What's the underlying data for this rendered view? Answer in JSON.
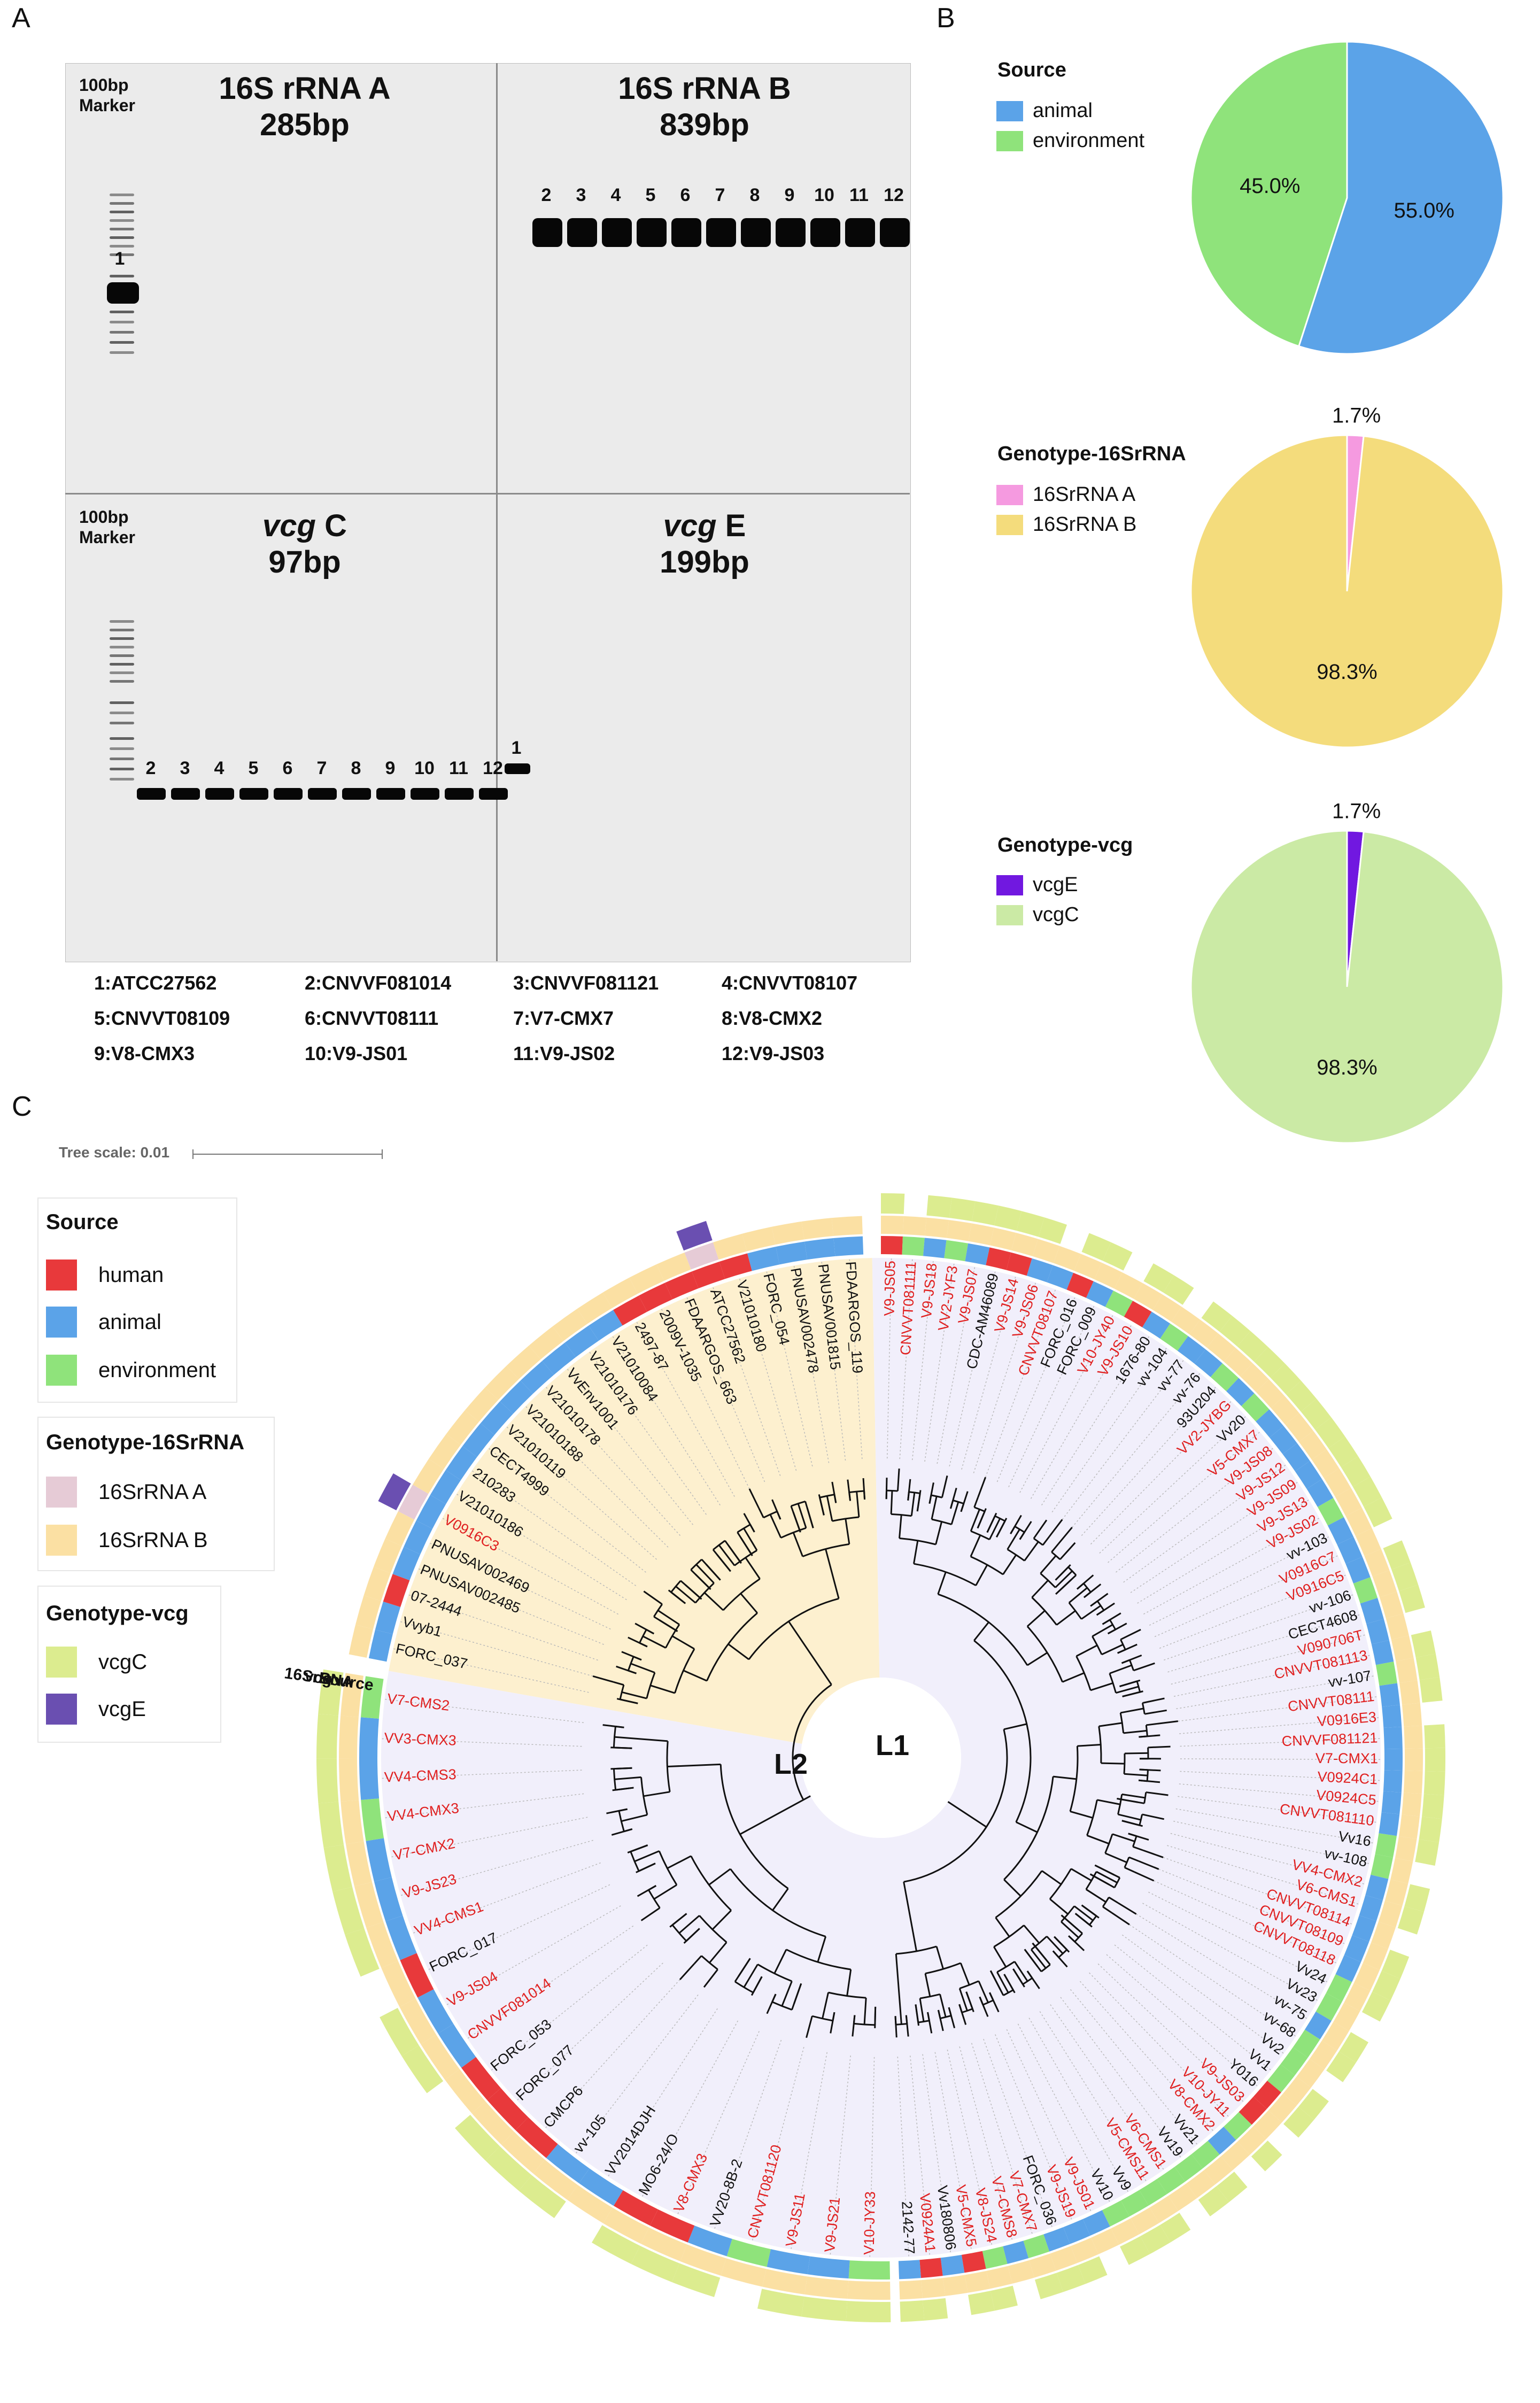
{
  "panel_labels": {
    "a": "A",
    "b": "B",
    "c": "C"
  },
  "gel": {
    "marker_label_line1": "100bp",
    "marker_label_line2": "Marker",
    "quadrants": [
      {
        "title_prefix": "16S rRNA A",
        "size": "285bp",
        "lanes": [
          "1"
        ]
      },
      {
        "title_prefix": "16S rRNA B",
        "size": "839bp",
        "lanes": [
          "2",
          "3",
          "4",
          "5",
          "6",
          "7",
          "8",
          "9",
          "10",
          "11",
          "12"
        ]
      },
      {
        "title_prefix": "vcg",
        "title_suffix": " C",
        "size": "97bp",
        "lanes": [
          "2",
          "3",
          "4",
          "5",
          "6",
          "7",
          "8",
          "9",
          "10",
          "11",
          "12"
        ]
      },
      {
        "title_prefix": "vcg",
        "title_suffix": " E",
        "size": "199bp",
        "lanes": [
          "1"
        ]
      }
    ],
    "sample_legend": [
      [
        "1:ATCC27562",
        "2:CNVVF081014",
        "3:CNVVF081121",
        "4:CNVVT08107"
      ],
      [
        "5:CNVVT08109",
        "6:CNVVT08111",
        "7:V7-CMX7",
        "8:V8-CMX2"
      ],
      [
        "9:V8-CMX3",
        "10:V9-JS01",
        "11:V9-JS02",
        "12:V9-JS03"
      ]
    ]
  },
  "colors": {
    "animal": "#5ba3e8",
    "environment": "#8fe37b",
    "human": "#e8393b",
    "16SrRNA_A": "#f59ae0",
    "16SrRNA_B": "#f4dc7c",
    "vcgE": "#7118e0",
    "vcgC": "#cbeaa5",
    "tree_16SrRNA_A": "#e6cbd6",
    "tree_16SrRNA_B": "#fbe0a3",
    "tree_vcgC": "#dcec8f",
    "tree_vcgE": "#6a4fb1",
    "red_label": "#e02020"
  },
  "chart_data": [
    {
      "type": "pie",
      "title": "Source",
      "labels": [
        "animal",
        "environment"
      ],
      "values": [
        55.0,
        45.0
      ],
      "value_labels": [
        "55.0%",
        "45.0%"
      ]
    },
    {
      "type": "pie",
      "title": "Genotype-16SrRNA",
      "labels": [
        "16SrRNA A",
        "16SrRNA B"
      ],
      "values": [
        1.7,
        98.3
      ],
      "value_labels": [
        "1.7%",
        "98.3%"
      ]
    },
    {
      "type": "pie",
      "title": "Genotype-vcg",
      "labels": [
        "vcgE",
        "vcgC"
      ],
      "values": [
        1.7,
        98.3
      ],
      "value_labels": [
        "1.7%",
        "98.3%"
      ]
    }
  ],
  "tree": {
    "scale_label": "Tree scale: 0.01",
    "ring_labels": [
      "vcg",
      "16SrRNA",
      "Source"
    ],
    "clade_labels": [
      "L1",
      "L2"
    ],
    "legend": {
      "source_title": "Source",
      "source_items": [
        "human",
        "animal",
        "environment"
      ],
      "g16_title": "Genotype-16SrRNA",
      "g16_items": [
        "16SrRNA A",
        "16SrRNA B"
      ],
      "vcg_title": "Genotype-vcg",
      "vcg_items": [
        "vcgC",
        "vcgE"
      ]
    },
    "l1_leaves": [
      {
        "n": "V9-JS05",
        "r": 1,
        "s": "h",
        "c": "C"
      },
      {
        "n": "CNVVT081111",
        "r": 1,
        "s": "e",
        "c": "-"
      },
      {
        "n": "V9-JS18",
        "r": 1,
        "s": "a",
        "c": "C"
      },
      {
        "n": "VV2-JYF3",
        "r": 1,
        "s": "e",
        "c": "C"
      },
      {
        "n": "V9-JS07",
        "r": 1,
        "s": "a",
        "c": "C"
      },
      {
        "n": "CDC-AM46089",
        "r": 0,
        "s": "h",
        "c": "C"
      },
      {
        "n": "V9-JS14",
        "r": 1,
        "s": "h",
        "c": "C"
      },
      {
        "n": "V9-JS06",
        "r": 1,
        "s": "a",
        "c": "C"
      },
      {
        "n": "CNVVT08107",
        "r": 1,
        "s": "a",
        "c": "-"
      },
      {
        "n": "FORC_016",
        "r": 0,
        "s": "h",
        "c": "C"
      },
      {
        "n": "FORC_009",
        "r": 0,
        "s": "a",
        "c": "C"
      },
      {
        "n": "V10-JY40",
        "r": 1,
        "s": "e",
        "c": "-"
      },
      {
        "n": "V9-JS10",
        "r": 1,
        "s": "h",
        "c": "C"
      },
      {
        "n": "1676-80",
        "r": 0,
        "s": "a",
        "c": "C"
      },
      {
        "n": "vv-104",
        "r": 0,
        "s": "e",
        "c": "-"
      },
      {
        "n": "vv-77",
        "r": 0,
        "s": "a",
        "c": "C"
      },
      {
        "n": "vv-76",
        "r": 0,
        "s": "a",
        "c": "C"
      },
      {
        "n": "93U204",
        "r": 0,
        "s": "e",
        "c": "C"
      },
      {
        "n": "VV2-JYBG",
        "r": 1,
        "s": "a",
        "c": "C"
      },
      {
        "n": "Vv20",
        "r": 0,
        "s": "e",
        "c": "C"
      },
      {
        "n": "V5-CMX7",
        "r": 1,
        "s": "a",
        "c": "C"
      },
      {
        "n": "V9-JS08",
        "r": 1,
        "s": "a",
        "c": "C"
      },
      {
        "n": "V9-JS12",
        "r": 1,
        "s": "a",
        "c": "C"
      },
      {
        "n": "V9-JS09",
        "r": 1,
        "s": "a",
        "c": "C"
      },
      {
        "n": "V9-JS13",
        "r": 1,
        "s": "a",
        "c": "C"
      },
      {
        "n": "V9-JS02",
        "r": 1,
        "s": "e",
        "c": "C"
      },
      {
        "n": "vv-103",
        "r": 0,
        "s": "a",
        "c": "C"
      },
      {
        "n": "V0916C7",
        "r": 1,
        "s": "a",
        "c": "-"
      },
      {
        "n": "V0916C5",
        "r": 1,
        "s": "a",
        "c": "C"
      },
      {
        "n": "vv-106",
        "r": 0,
        "s": "e",
        "c": "C"
      },
      {
        "n": "CECT4608",
        "r": 0,
        "s": "a",
        "c": "C"
      },
      {
        "n": "V090706T",
        "r": 1,
        "s": "a",
        "c": "-"
      },
      {
        "n": "CNVVT081113",
        "r": 1,
        "s": "a",
        "c": "C"
      },
      {
        "n": "vv-107",
        "r": 0,
        "s": "e",
        "c": "C"
      },
      {
        "n": "CNVVT08111",
        "r": 1,
        "s": "a",
        "c": "C"
      },
      {
        "n": "V0916E3",
        "r": 1,
        "s": "a",
        "c": "-"
      },
      {
        "n": "CNVVF081121",
        "r": 1,
        "s": "a",
        "c": "C"
      },
      {
        "n": "V7-CMX1",
        "r": 1,
        "s": "a",
        "c": "C"
      },
      {
        "n": "V0924C1",
        "r": 1,
        "s": "a",
        "c": "C"
      },
      {
        "n": "V0924C5",
        "r": 1,
        "s": "a",
        "c": "C"
      },
      {
        "n": "CNVVT081110",
        "r": 1,
        "s": "a",
        "c": "C"
      },
      {
        "n": "Vv16",
        "r": 0,
        "s": "e",
        "c": "C"
      },
      {
        "n": "vv-108",
        "r": 0,
        "s": "e",
        "c": "-"
      },
      {
        "n": "VV4-CMX2",
        "r": 1,
        "s": "a",
        "c": "C"
      },
      {
        "n": "V6-CMS1",
        "r": 1,
        "s": "a",
        "c": "C"
      },
      {
        "n": "CNVVT08114",
        "r": 1,
        "s": "a",
        "c": "-"
      },
      {
        "n": "CNVVT08109",
        "r": 1,
        "s": "a",
        "c": "C"
      },
      {
        "n": "CNVVT08118",
        "r": 1,
        "s": "a",
        "c": "C"
      },
      {
        "n": "Vv24",
        "r": 0,
        "s": "e",
        "c": "C"
      },
      {
        "n": "Vv23",
        "r": 0,
        "s": "e",
        "c": "-"
      },
      {
        "n": "vv-75",
        "r": 0,
        "s": "a",
        "c": "C"
      },
      {
        "n": "vv-68",
        "r": 0,
        "s": "e",
        "c": "C"
      },
      {
        "n": "Vv2",
        "r": 0,
        "s": "e",
        "c": "-"
      },
      {
        "n": "Vv1",
        "r": 0,
        "s": "e",
        "c": "C"
      },
      {
        "n": "Y016",
        "r": 0,
        "s": "h",
        "c": "C"
      },
      {
        "n": "V9-JS03",
        "r": 1,
        "s": "h",
        "c": "-"
      },
      {
        "n": "V10-JY11",
        "r": 1,
        "s": "e",
        "c": "C"
      },
      {
        "n": "V8-CMX2",
        "r": 1,
        "s": "a",
        "c": "-"
      },
      {
        "n": "Vv21",
        "r": 0,
        "s": "e",
        "c": "C"
      },
      {
        "n": "Vv19",
        "r": 0,
        "s": "e",
        "c": "C"
      },
      {
        "n": "V6-CMS1",
        "r": 1,
        "s": "e",
        "c": "-"
      },
      {
        "n": "V5-CMS11",
        "r": 1,
        "s": "e",
        "c": "C"
      },
      {
        "n": "Vv9",
        "r": 0,
        "s": "e",
        "c": "C"
      },
      {
        "n": "Vv10",
        "r": 0,
        "s": "e",
        "c": "C"
      },
      {
        "n": "V9-JS01",
        "r": 1,
        "s": "a",
        "c": "-"
      },
      {
        "n": "V9-JS19",
        "r": 1,
        "s": "a",
        "c": "C"
      },
      {
        "n": "FORC_036",
        "r": 0,
        "s": "a",
        "c": "C"
      },
      {
        "n": "V7-CMX7",
        "r": 1,
        "s": "e",
        "c": "C"
      },
      {
        "n": "V7-CMS8",
        "r": 1,
        "s": "a",
        "c": "-"
      },
      {
        "n": "V8-JS24",
        "r": 1,
        "s": "e",
        "c": "C"
      },
      {
        "n": "V5-CMX5",
        "r": 1,
        "s": "h",
        "c": "C"
      },
      {
        "n": "Vv180806",
        "r": 0,
        "s": "a",
        "c": "-"
      },
      {
        "n": "V0924A1",
        "r": 1,
        "s": "h",
        "c": "C"
      },
      {
        "n": "2142-77",
        "r": 0,
        "s": "a",
        "c": "C"
      }
    ],
    "l2_leaves": [
      {
        "n": "V10-JY33",
        "r": 1,
        "s": "e",
        "c": "C"
      },
      {
        "n": "V9-JS21",
        "r": 1,
        "s": "a",
        "c": "C"
      },
      {
        "n": "V9-JS11",
        "r": 1,
        "s": "a",
        "c": "C"
      },
      {
        "n": "CNVVT081120",
        "r": 1,
        "s": "e",
        "c": "-"
      },
      {
        "n": "VV20-8B-2",
        "r": 0,
        "s": "a",
        "c": "C"
      },
      {
        "n": "V8-CMX3",
        "r": 1,
        "s": "h",
        "c": "C"
      },
      {
        "n": "MO6-24/O",
        "r": 0,
        "s": "h",
        "c": "C"
      },
      {
        "n": "VV2014DJH",
        "r": 0,
        "s": "a",
        "c": "-"
      },
      {
        "n": "vv-105",
        "r": 0,
        "s": "a",
        "c": "C"
      },
      {
        "n": "CMCP6",
        "r": 0,
        "s": "h",
        "c": "C"
      },
      {
        "n": "FORC_077",
        "r": 0,
        "s": "h",
        "c": "C"
      },
      {
        "n": "FORC_053",
        "r": 0,
        "s": "h",
        "c": "-"
      },
      {
        "n": "CNVVF081014",
        "r": 1,
        "s": "a",
        "c": "C"
      },
      {
        "n": "V9-JS04",
        "r": 1,
        "s": "a",
        "c": "C"
      },
      {
        "n": "FORC_017",
        "r": 0,
        "s": "h",
        "c": "-"
      },
      {
        "n": "VV4-CMS1",
        "r": 1,
        "s": "a",
        "c": "C"
      },
      {
        "n": "V9-JS23",
        "r": 1,
        "s": "a",
        "c": "C"
      },
      {
        "n": "V7-CMX2",
        "r": 1,
        "s": "a",
        "c": "C"
      },
      {
        "n": "VV4-CMX3",
        "r": 1,
        "s": "e",
        "c": "C"
      },
      {
        "n": "VV4-CMS3",
        "r": 1,
        "s": "a",
        "c": "C"
      },
      {
        "n": "VV3-CMX3",
        "r": 1,
        "s": "a",
        "c": "C"
      },
      {
        "n": "V7-CMS2",
        "r": 1,
        "s": "e",
        "c": "C"
      }
    ],
    "yellow_leaves": [
      {
        "n": "FORC_037",
        "r": 0,
        "s": "a",
        "c": "-",
        "g": "B"
      },
      {
        "n": "Vvyb1",
        "r": 0,
        "s": "a",
        "c": "-",
        "g": "B"
      },
      {
        "n": "07-2444",
        "r": 0,
        "s": "h",
        "c": "-",
        "g": "B"
      },
      {
        "n": "PNUSAV002485",
        "r": 0,
        "s": "a",
        "c": "-",
        "g": "B"
      },
      {
        "n": "PNUSAV002469",
        "r": 0,
        "s": "a",
        "c": "-",
        "g": "B"
      },
      {
        "n": "V0916C3",
        "r": 1,
        "s": "a",
        "c": "E",
        "g": "A"
      },
      {
        "n": "V21010186",
        "r": 0,
        "s": "a",
        "c": "-",
        "g": "B"
      },
      {
        "n": "210283",
        "r": 0,
        "s": "a",
        "c": "-",
        "g": "B"
      },
      {
        "n": "CECT4999",
        "r": 0,
        "s": "a",
        "c": "-",
        "g": "B"
      },
      {
        "n": "V21010119",
        "r": 0,
        "s": "a",
        "c": "-",
        "g": "B"
      },
      {
        "n": "V21010188",
        "r": 0,
        "s": "a",
        "c": "-",
        "g": "B"
      },
      {
        "n": "V21010178",
        "r": 0,
        "s": "a",
        "c": "-",
        "g": "B"
      },
      {
        "n": "VvEnv1001",
        "r": 0,
        "s": "a",
        "c": "-",
        "g": "B"
      },
      {
        "n": "V21010176",
        "r": 0,
        "s": "a",
        "c": "-",
        "g": "B"
      },
      {
        "n": "V21010084",
        "r": 0,
        "s": "a",
        "c": "-",
        "g": "B"
      },
      {
        "n": "2497-87",
        "r": 0,
        "s": "h",
        "c": "-",
        "g": "B"
      },
      {
        "n": "2009V-1035",
        "r": 0,
        "s": "h",
        "c": "-",
        "g": "B"
      },
      {
        "n": "FDAARGOS_663",
        "r": 0,
        "s": "h",
        "c": "-",
        "g": "B"
      },
      {
        "n": "ATCC27562",
        "r": 0,
        "s": "h",
        "c": "E",
        "g": "A"
      },
      {
        "n": "V21010180",
        "r": 0,
        "s": "h",
        "c": "-",
        "g": "B"
      },
      {
        "n": "FORC_054",
        "r": 0,
        "s": "a",
        "c": "-",
        "g": "B"
      },
      {
        "n": "PNUSAV002478",
        "r": 0,
        "s": "a",
        "c": "-",
        "g": "B"
      },
      {
        "n": "PNUSAV001815",
        "r": 0,
        "s": "a",
        "c": "-",
        "g": "B"
      },
      {
        "n": "FDAARGOS_119",
        "r": 0,
        "s": "a",
        "c": "-",
        "g": "B"
      }
    ]
  }
}
